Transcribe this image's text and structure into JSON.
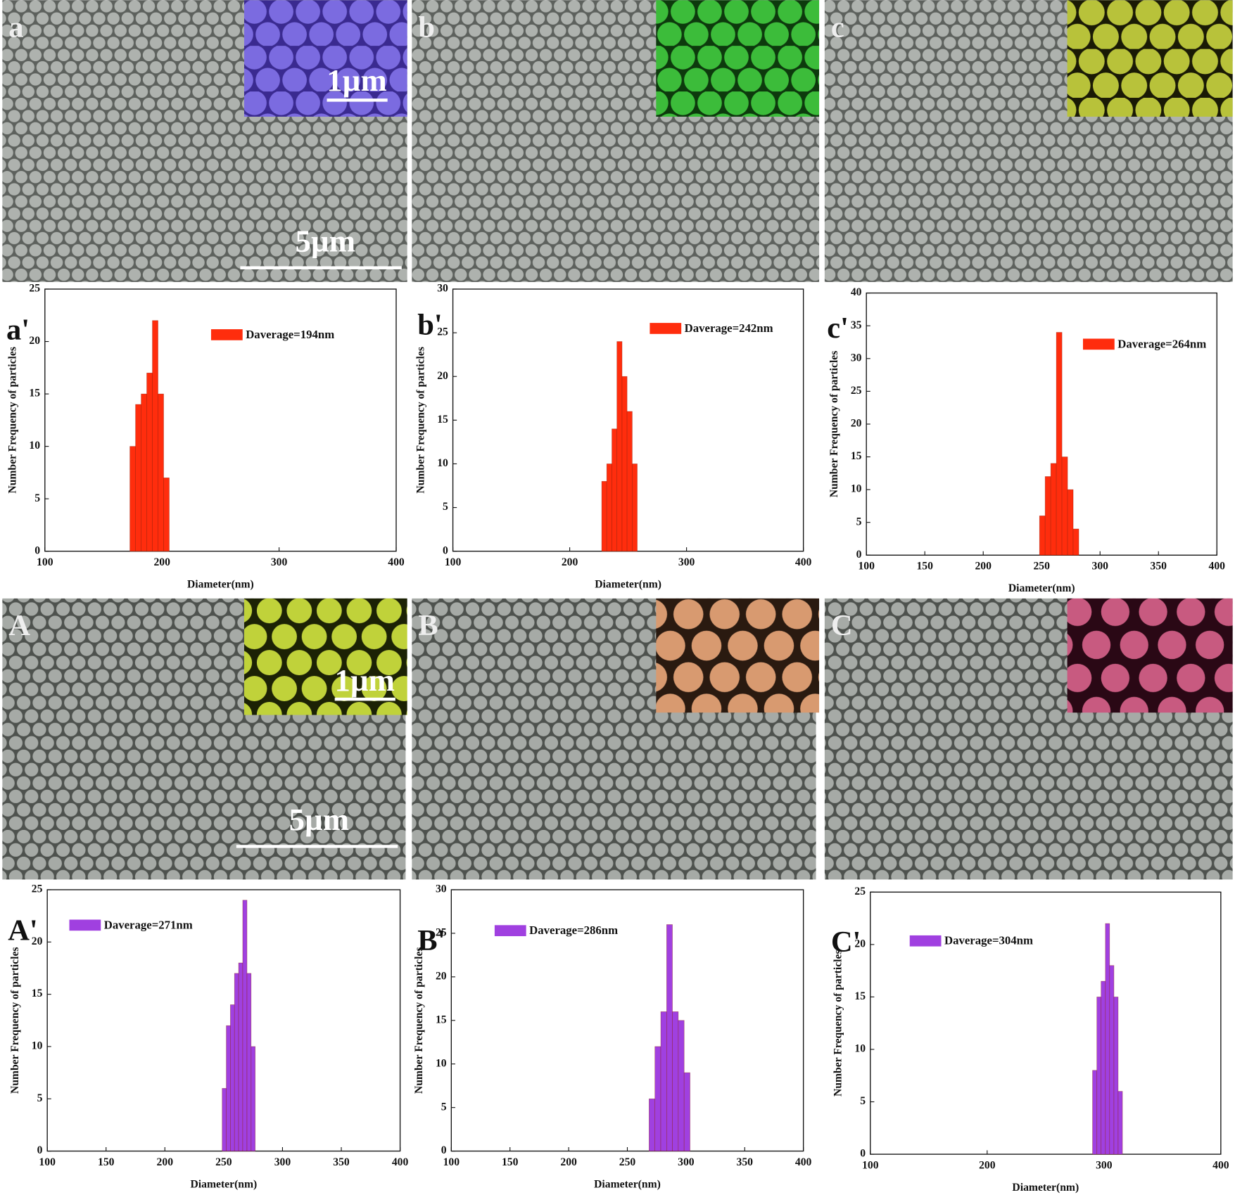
{
  "images": [
    {
      "label": "a",
      "scale_bar": "5µm",
      "inset_scale_bar": "1µm"
    },
    {
      "label": "b"
    },
    {
      "label": "c"
    },
    {
      "label": "A",
      "scale_bar": "5µm",
      "inset_scale_bar": "1µm"
    },
    {
      "label": "B"
    },
    {
      "label": "C"
    }
  ],
  "chart_data": [
    {
      "type": "histogram",
      "panel_label": "a'",
      "x_label": "Diameter(nm)",
      "y_label": "Number Frequency of particles",
      "bins": [
        172.6,
        177.4,
        182.2,
        187.0,
        191.8,
        196.6,
        201.4,
        206.2
      ],
      "series": [
        {
          "name": "Daverage=194nm",
          "color": "#ff2d0d",
          "values": [
            10,
            14,
            15,
            17,
            22,
            15,
            7
          ]
        }
      ],
      "xlim": [
        100,
        400
      ],
      "xticks": [
        100,
        200,
        300,
        400
      ],
      "ylim": [
        0,
        25
      ],
      "yticks": [
        0,
        5,
        10,
        15,
        20,
        25
      ]
    },
    {
      "type": "histogram",
      "panel_label": "b'",
      "x_label": "Diameter(nm)",
      "y_label": "Number Frequency of particles",
      "bins": [
        227.4,
        231.7,
        236.1,
        240.4,
        244.8,
        249.1,
        253.5,
        257.8
      ],
      "series": [
        {
          "name": "Daverage=242nm",
          "color": "#ff2d0d",
          "values": [
            8,
            10,
            14,
            24,
            20,
            16,
            10
          ]
        }
      ],
      "xlim": [
        100,
        400
      ],
      "xticks": [
        100,
        200,
        300,
        400
      ],
      "ylim": [
        0,
        30
      ],
      "yticks": [
        0,
        5,
        10,
        15,
        20,
        25,
        30
      ]
    },
    {
      "type": "histogram",
      "panel_label": "c'",
      "x_label": "Diameter(nm)",
      "y_label": "Number Frequency of particles",
      "bins": [
        248.2,
        253.0,
        257.8,
        262.6,
        267.4,
        272.2,
        277.0,
        281.8
      ],
      "series": [
        {
          "name": "Daverage=264nm",
          "color": "#ff2d0d",
          "values": [
            6,
            12,
            14,
            34,
            15,
            10,
            4
          ]
        }
      ],
      "xlim": [
        100,
        400
      ],
      "xticks": [
        100,
        150,
        200,
        250,
        300,
        350,
        400
      ],
      "ylim": [
        0,
        40
      ],
      "yticks": [
        0,
        5,
        10,
        15,
        20,
        25,
        30,
        35,
        40
      ]
    },
    {
      "type": "histogram",
      "panel_label": "A'",
      "x_label": "Diameter(nm)",
      "y_label": "Number Frequency of particles",
      "bins": [
        248.7,
        252.2,
        255.7,
        259.2,
        262.7,
        266.2,
        269.8,
        273.3,
        276.8
      ],
      "series": [
        {
          "name": "Daverage=271nm",
          "color": "#a040e0",
          "values": [
            6,
            12,
            14,
            17,
            18,
            24,
            17,
            10
          ]
        }
      ],
      "xlim": [
        100,
        400
      ],
      "xticks": [
        100,
        150,
        200,
        250,
        300,
        350,
        400
      ],
      "ylim": [
        0,
        25
      ],
      "yticks": [
        0,
        5,
        10,
        15,
        20,
        25
      ]
    },
    {
      "type": "histogram",
      "panel_label": "B'",
      "x_label": "Diameter(nm)",
      "y_label": "Number Frequency of particles",
      "bins": [
        268.5,
        273.5,
        278.5,
        283.5,
        288.4,
        293.4,
        298.4,
        303.4
      ],
      "series": [
        {
          "name": "Daverage=286nm",
          "color": "#a040e0",
          "values": [
            6,
            12,
            16,
            26,
            16,
            15,
            9
          ]
        }
      ],
      "xlim": [
        100,
        400
      ],
      "xticks": [
        100,
        150,
        200,
        250,
        300,
        350,
        400
      ],
      "ylim": [
        0,
        30
      ],
      "yticks": [
        0,
        5,
        10,
        15,
        20,
        25,
        30
      ]
    },
    {
      "type": "histogram",
      "panel_label": "C'",
      "x_label": "Diameter(nm)",
      "y_label": "Number Frequency of particles",
      "bins": [
        290.2,
        293.9,
        297.5,
        301.2,
        304.8,
        308.5,
        312.1,
        315.8
      ],
      "series": [
        {
          "name": "Daverage=304nm",
          "color": "#a040e0",
          "values": [
            8,
            15,
            16.5,
            22,
            18,
            15,
            6
          ]
        }
      ],
      "xlim": [
        100,
        400
      ],
      "xticks": [
        100,
        200,
        300,
        400
      ],
      "ylim": [
        0,
        25
      ],
      "yticks": [
        0,
        5,
        10,
        15,
        20,
        25
      ]
    }
  ]
}
